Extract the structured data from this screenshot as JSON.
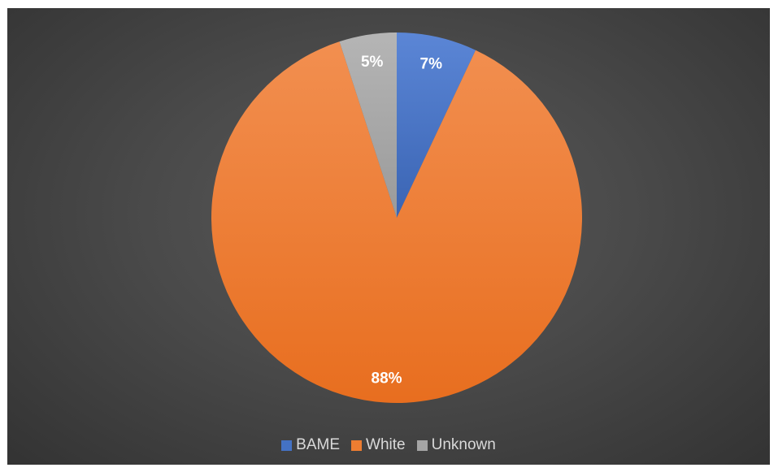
{
  "chart_data": {
    "type": "pie",
    "title": "",
    "categories": [
      "BAME",
      "White",
      "Unknown"
    ],
    "values": [
      7,
      88,
      5
    ],
    "labels": [
      "7%",
      "88%",
      "5%"
    ],
    "colors": [
      "#4472C4",
      "#ED7D31",
      "#A5A5A5"
    ],
    "start_angle_deg": 0,
    "direction": "clockwise",
    "legend_position": "bottom"
  }
}
